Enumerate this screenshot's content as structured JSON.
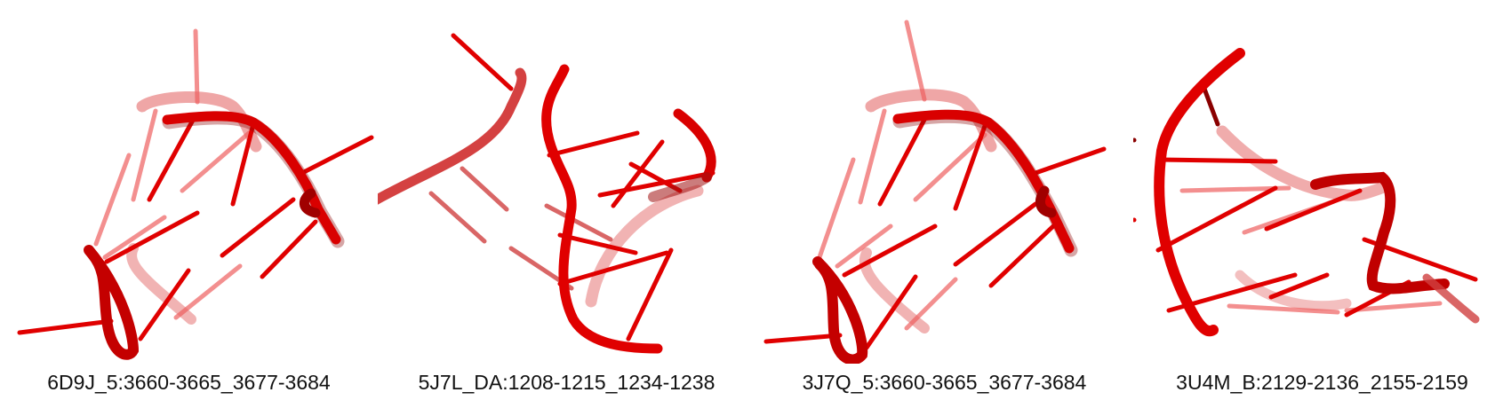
{
  "colors": {
    "backbone": "#d90000",
    "base": "#e00000",
    "shadow": "#8a0000"
  },
  "panels": [
    {
      "label": "6D9J_5:3660-3665_3677-3684"
    },
    {
      "label": "5J7L_DA:1208-1215_1234-1238"
    },
    {
      "label": "3J7Q_5:3660-3665_3677-3684"
    },
    {
      "label": "3U4M_B:2129-2136_2155-2159"
    }
  ]
}
